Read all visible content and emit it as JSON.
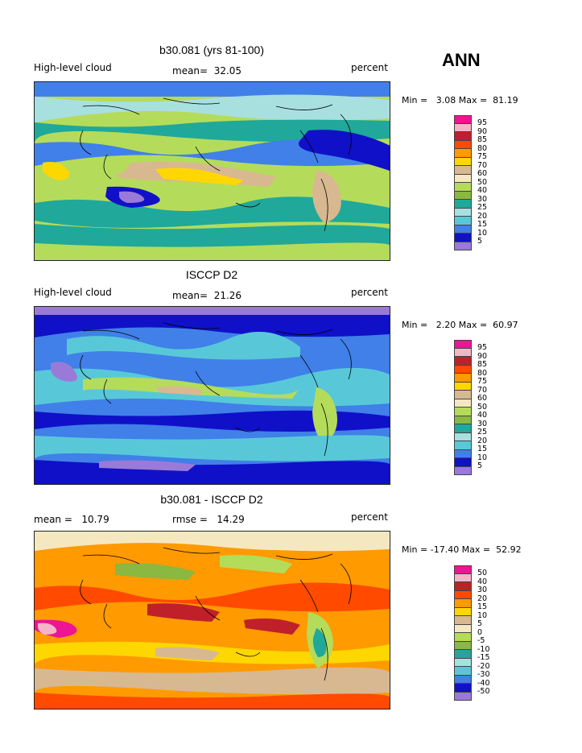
{
  "season": "ANN",
  "panels": [
    {
      "id": "model",
      "title": "b30.081 (yrs 81-100)",
      "left_label": "High-level cloud",
      "center_label": "mean=  32.05",
      "right_label": "percent",
      "minmax": "Min =   3.08 Max =  81.19",
      "colorbar": {
        "labels": [
          "95",
          "90",
          "85",
          "80",
          "75",
          "70",
          "60",
          "50",
          "40",
          "30",
          "25",
          "20",
          "15",
          "10",
          "5"
        ],
        "colors": [
          "#ee1493",
          "#f5b5c8",
          "#c0202a",
          "#ff4a00",
          "#ff9a00",
          "#ffd700",
          "#d8b890",
          "#f5e8c0",
          "#b4dc5a",
          "#8ab840",
          "#20a89a",
          "#a8e0e0",
          "#58c8d8",
          "#4080e8",
          "#1010c8",
          "#9a7ad8"
        ]
      }
    },
    {
      "id": "obs",
      "title": "ISCCP D2",
      "left_label": "High-level cloud",
      "center_label": "mean=  21.26",
      "right_label": "percent",
      "minmax": "Min =   2.20 Max =  60.97",
      "colorbar": {
        "labels": [
          "95",
          "90",
          "85",
          "80",
          "75",
          "70",
          "60",
          "50",
          "40",
          "30",
          "25",
          "20",
          "15",
          "10",
          "5"
        ],
        "colors": [
          "#ee1493",
          "#f5b5c8",
          "#c0202a",
          "#ff4a00",
          "#ff9a00",
          "#ffd700",
          "#d8b890",
          "#f5e8c0",
          "#b4dc5a",
          "#8ab840",
          "#20a89a",
          "#a8e0e0",
          "#58c8d8",
          "#4080e8",
          "#1010c8",
          "#9a7ad8"
        ]
      }
    },
    {
      "id": "diff",
      "title": "b30.081 - ISCCP D2",
      "left_label": "mean =   10.79",
      "center_label": "rmse =   14.29",
      "right_label": "percent",
      "minmax": "Min = -17.40 Max =  52.92",
      "colorbar": {
        "labels": [
          "50",
          "40",
          "30",
          "20",
          "15",
          "10",
          "5",
          "0",
          "-5",
          "-10",
          "-15",
          "-20",
          "-30",
          "-40",
          "-50"
        ],
        "colors": [
          "#ee1493",
          "#f5b5c8",
          "#c0202a",
          "#ff4a00",
          "#ff9a00",
          "#ffd700",
          "#d8b890",
          "#f5e8c0",
          "#b4dc5a",
          "#8ab840",
          "#20a89a",
          "#a8e0e0",
          "#58c8d8",
          "#4080e8",
          "#1010c8",
          "#9a7ad8"
        ]
      }
    }
  ]
}
